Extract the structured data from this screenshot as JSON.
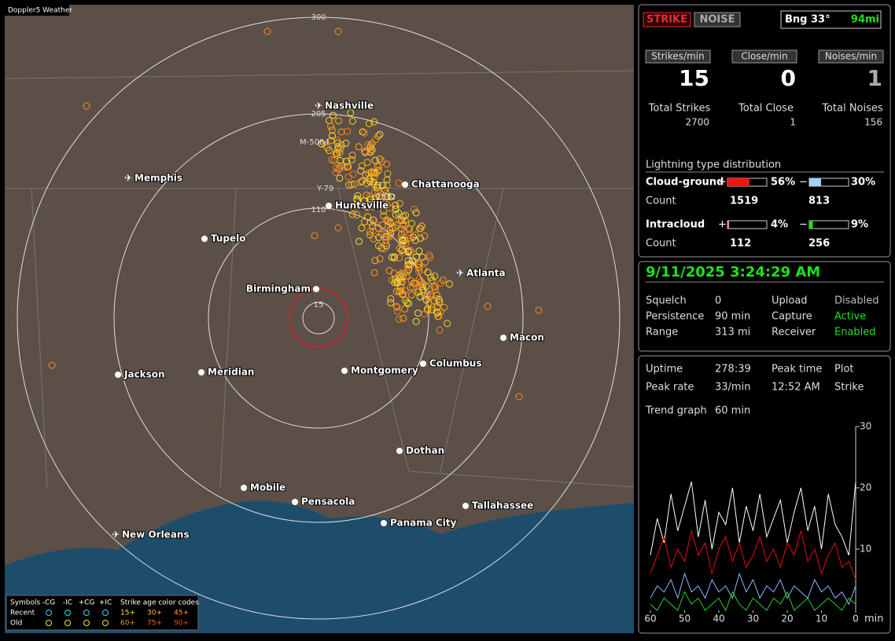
{
  "map": {
    "title": "Doppler5 Weather",
    "range_labels": [
      "300",
      "205",
      "110",
      "15"
    ],
    "cities": [
      "Nashville",
      "Memphis",
      "Chattanooga",
      "Huntsville",
      "Tupelo",
      "Atlanta",
      "Birmingham",
      "Macon",
      "Jackson",
      "Meridian",
      "Montgomery",
      "Columbus",
      "Dothan",
      "Mobile",
      "Pensacola",
      "Tallahassee",
      "Panama City",
      "New Orleans"
    ],
    "markers": [
      "M-5084",
      "Y-79",
      "2532"
    ],
    "legend": {
      "symbols": "Symbols",
      "headers": [
        "-CG",
        "-IC",
        "+CG",
        "+IC"
      ],
      "age_title": "Strike age color codes",
      "recent": "Recent",
      "old": "Old",
      "recent_ages": [
        "15+",
        "30+",
        "45+"
      ],
      "old_ages": [
        "60+",
        "75+",
        "90+"
      ]
    }
  },
  "status": {
    "strike_button": "STRIKE",
    "noise_button": "NOISE",
    "bearing": "Bng 33°",
    "distance": "94mi",
    "rates": [
      {
        "label": "Strikes/min",
        "value": 15,
        "total_label": "Total Strikes",
        "total": 2700
      },
      {
        "label": "Close/min",
        "value": 0,
        "total_label": "Total Close",
        "total": 1
      },
      {
        "label": "Noises/min",
        "value": 1,
        "total_label": "Total Noises",
        "total": 156
      }
    ],
    "distribution_title": "Lightning type distribution",
    "count_label": "Count",
    "types": [
      {
        "name": "Cloud-ground",
        "pos_sign": "+",
        "pos_pct": 56,
        "pos_pct_label": "56%",
        "pos_count": 1519,
        "neg_sign": "−",
        "neg_pct": 30,
        "neg_pct_label": "30%",
        "neg_count": 813
      },
      {
        "name": "Intracloud",
        "pos_sign": "+",
        "pos_pct": 4,
        "pos_pct_label": "4%",
        "pos_count": 112,
        "neg_sign": "−",
        "neg_pct": 9,
        "neg_pct_label": "9%",
        "neg_count": 256
      }
    ]
  },
  "settings": {
    "datetime": "9/11/2025 3:24:29 AM",
    "rows": [
      [
        "Squelch",
        "0",
        "Upload",
        "Disabled"
      ],
      [
        "Persistence",
        "90 min",
        "Capture",
        "Active"
      ],
      [
        "Range",
        "313 mi",
        "Receiver",
        "Enabled"
      ]
    ]
  },
  "stats": {
    "rows": [
      [
        "Uptime",
        "278:39",
        "Peak time",
        "Plot"
      ],
      [
        "Peak rate",
        "33/min",
        "12:52 AM",
        "Strike"
      ]
    ],
    "trend_label": "Trend graph",
    "trend_window": "60 min"
  },
  "trend": {
    "type": "line",
    "x_unit": "min",
    "x": [
      60,
      58,
      56,
      54,
      52,
      50,
      48,
      46,
      44,
      42,
      40,
      38,
      36,
      34,
      32,
      30,
      28,
      26,
      24,
      22,
      20,
      18,
      16,
      14,
      12,
      10,
      8,
      6,
      4,
      2,
      0
    ],
    "xlim": [
      60,
      0
    ],
    "xticks": [
      60,
      50,
      40,
      30,
      20,
      10,
      0
    ],
    "ylim": [
      0,
      30
    ],
    "yticks": [
      30,
      20,
      10
    ],
    "series": [
      {
        "color": "#ffffff",
        "values": [
          9,
          15,
          11,
          19,
          13,
          17,
          21,
          12,
          18,
          10,
          16,
          14,
          20,
          11,
          17,
          13,
          19,
          12,
          15,
          18,
          11,
          16,
          20,
          13,
          17,
          10,
          19,
          14,
          12,
          9,
          21
        ]
      },
      {
        "color": "#e01010",
        "values": [
          6,
          9,
          12,
          7,
          10,
          8,
          13,
          9,
          11,
          6,
          10,
          12,
          8,
          11,
          7,
          9,
          12,
          8,
          10,
          7,
          11,
          9,
          13,
          8,
          10,
          6,
          9,
          11,
          7,
          8,
          5
        ]
      },
      {
        "color": "#8ab8ff",
        "values": [
          2,
          4,
          3,
          5,
          2,
          6,
          3,
          4,
          2,
          5,
          3,
          4,
          2,
          6,
          3,
          5,
          2,
          4,
          3,
          5,
          2,
          4,
          3,
          2,
          5,
          3,
          4,
          2,
          3,
          1,
          4
        ]
      },
      {
        "color": "#20d020",
        "values": [
          1,
          0,
          2,
          1,
          0,
          3,
          1,
          2,
          0,
          1,
          2,
          0,
          3,
          1,
          0,
          2,
          1,
          0,
          2,
          1,
          3,
          0,
          1,
          2,
          0,
          1,
          2,
          1,
          0,
          2,
          1
        ]
      }
    ]
  }
}
